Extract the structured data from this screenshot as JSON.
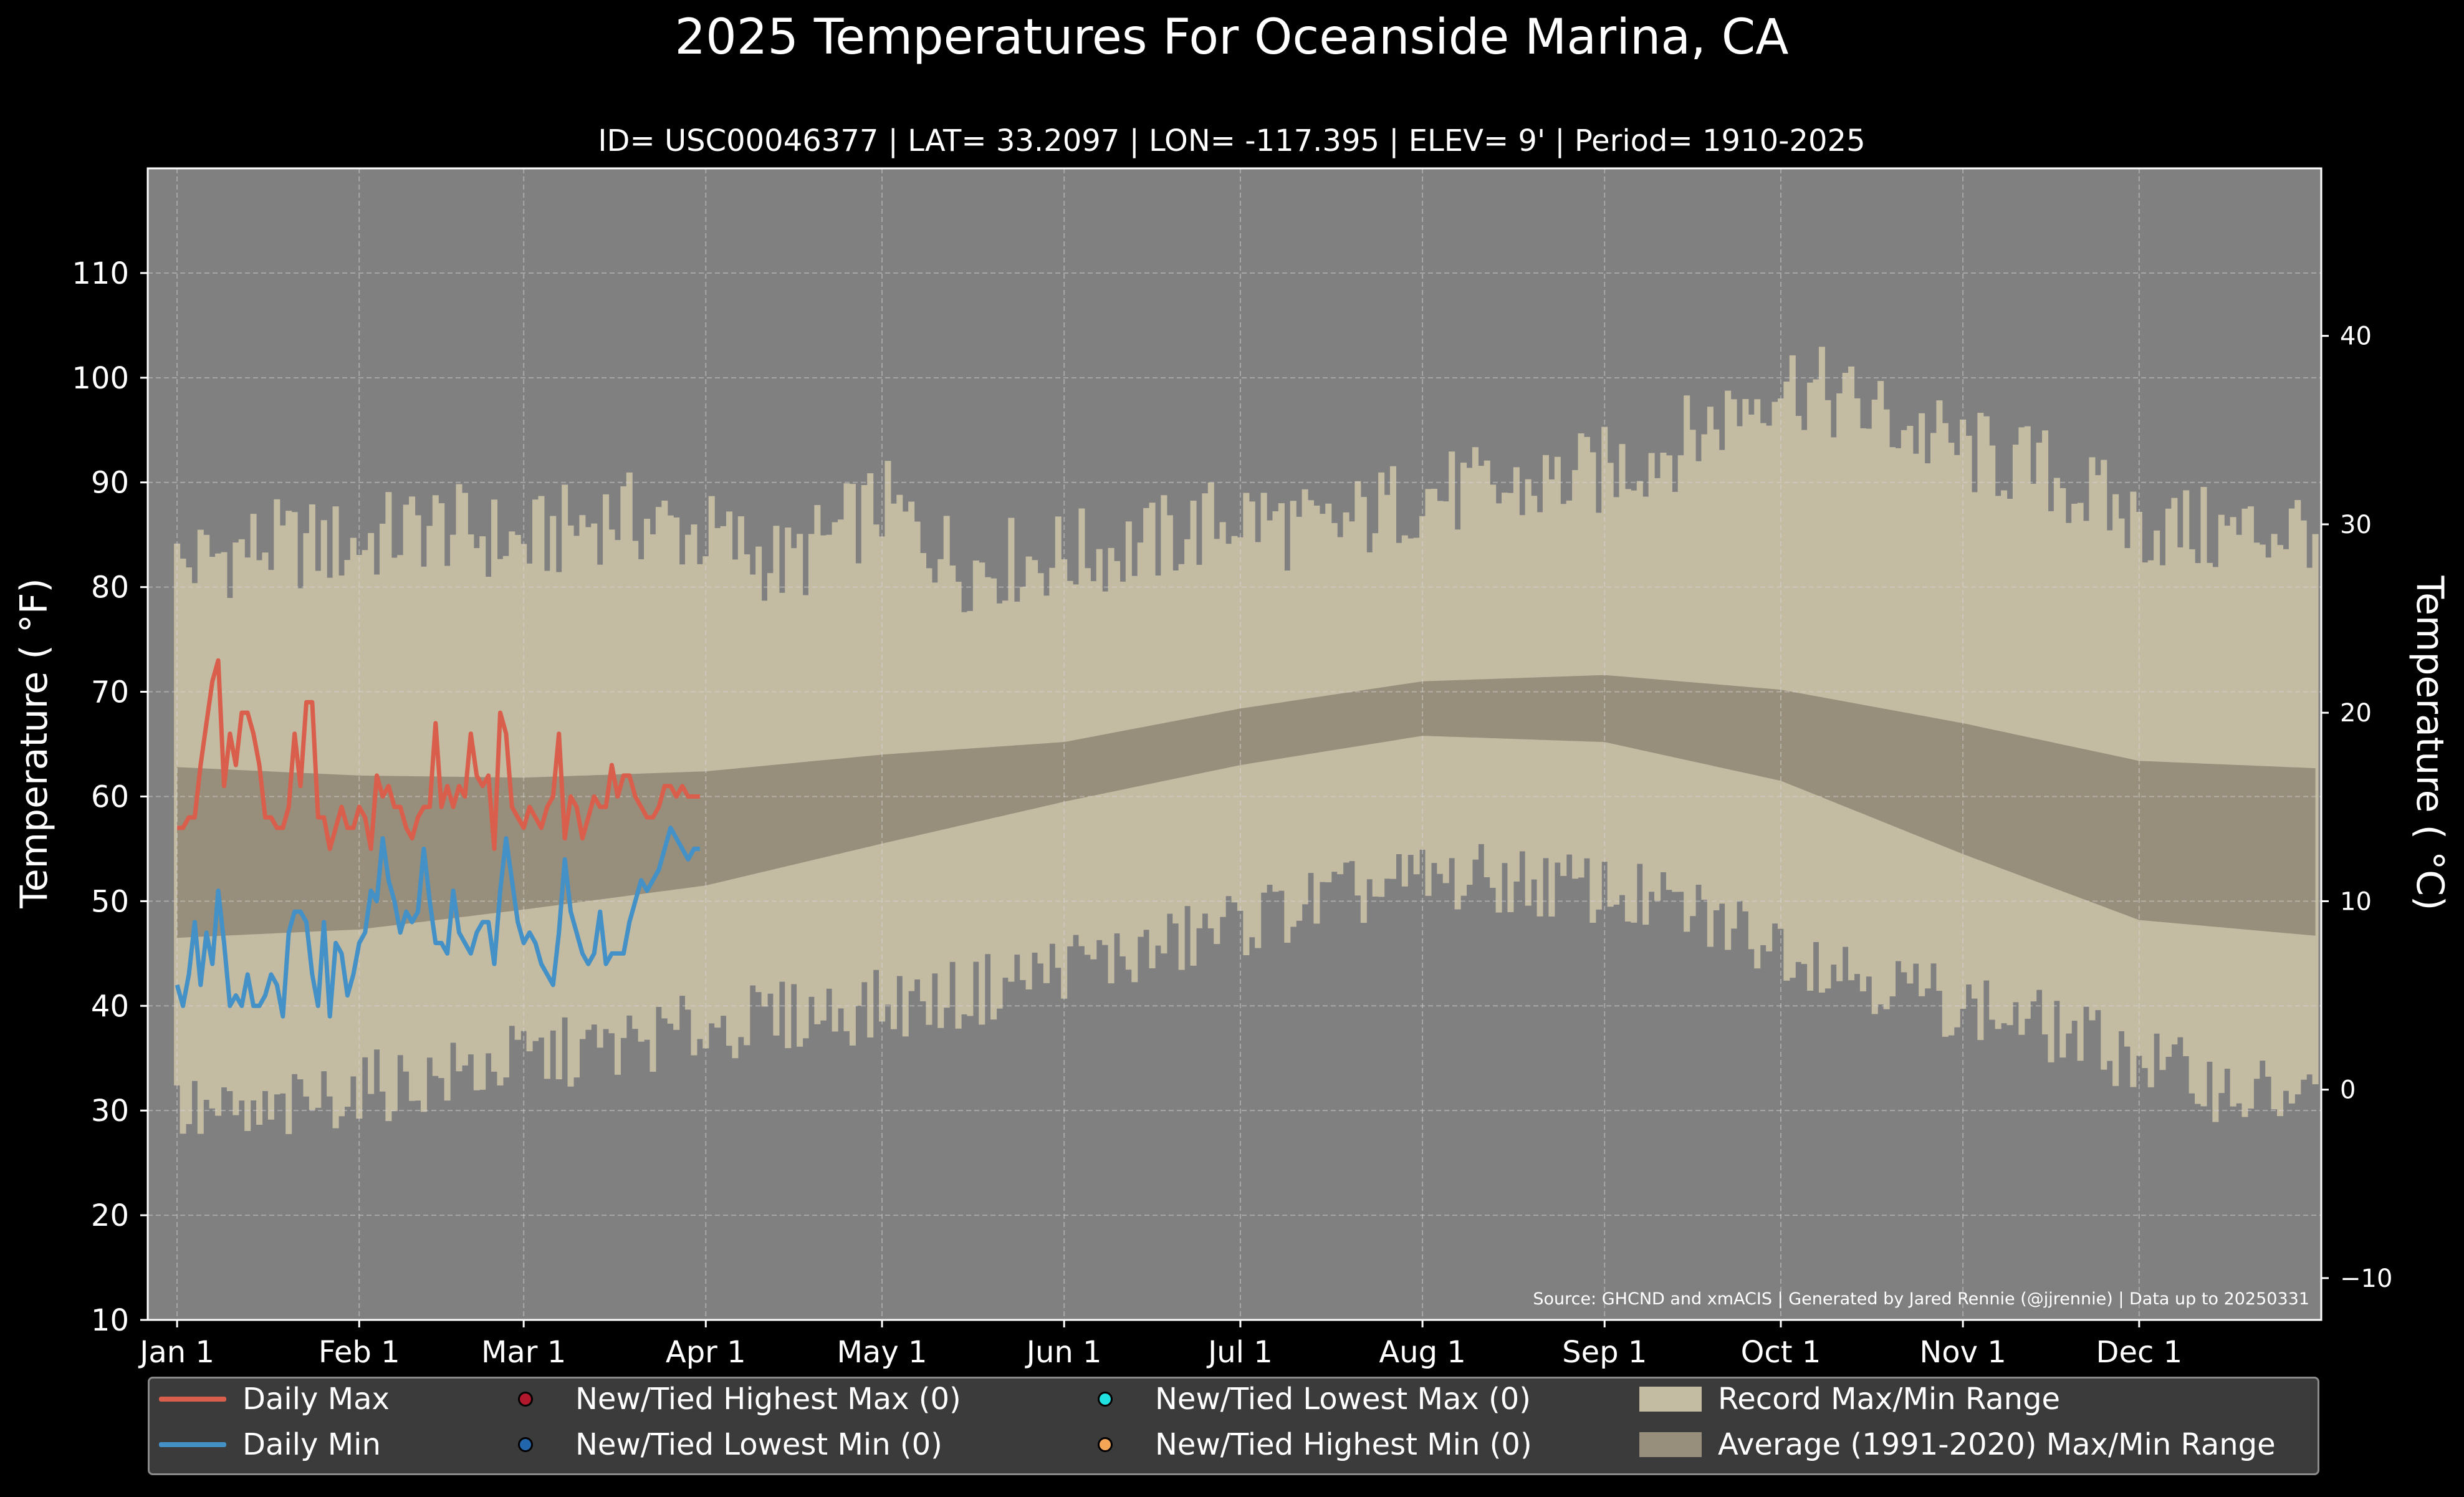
{
  "title": "2025 Temperatures For Oceanside Marina, CA",
  "subtitle": "ID= USC00046377 | LAT= 33.2097 | LON= -117.395 | ELEV= 9' | Period= 1910-2025",
  "source_note": "Source: GHCND and xmACIS | Generated by Jared Rennie (@jjrennie) | Data up to 20250331",
  "colors": {
    "background": "#000000",
    "plot_bg": "#808080",
    "record": "#c4bba3",
    "normal": "#978e7b",
    "daily_max": "#d95f4c",
    "daily_min": "#4391c6",
    "dot_high_max": "#b2182b",
    "dot_low_min": "#2166ac",
    "dot_low_max": "#20e0e0",
    "dot_high_min": "#f4a556"
  },
  "chart_data": {
    "type": "area",
    "ylabel": "Temperature ( °F)",
    "ylabel2": "Temperature ( °C)",
    "ylim": [
      10,
      120
    ],
    "ylim2_celsius": [
      -12.22,
      48.89
    ],
    "yticks": [
      "10",
      "20",
      "30",
      "40",
      "50",
      "60",
      "70",
      "80",
      "90",
      "100",
      "110"
    ],
    "yticks2": [
      "−10",
      "0",
      "10",
      "20",
      "30",
      "40"
    ],
    "yticks2_values": [
      -10,
      0,
      10,
      20,
      30,
      40
    ],
    "xticks": [
      "Jan 1",
      "Feb 1",
      "Mar 1",
      "Apr 1",
      "May 1",
      "Jun 1",
      "Jul 1",
      "Aug 1",
      "Sep 1",
      "Oct 1",
      "Nov 1",
      "Dec 1"
    ],
    "xticks_day": [
      1,
      32,
      60,
      91,
      121,
      152,
      182,
      213,
      244,
      274,
      305,
      335
    ],
    "xlim_days": [
      -4,
      366
    ],
    "grid": true,
    "legend_position": "below",
    "record_max_anchors": {
      "day": [
        1,
        15,
        30,
        45,
        60,
        75,
        91,
        105,
        121,
        135,
        152,
        166,
        182,
        196,
        213,
        227,
        244,
        258,
        274,
        288,
        305,
        319,
        335,
        350,
        365
      ],
      "value": [
        82,
        84,
        84,
        86,
        84,
        87,
        85,
        82,
        88,
        82,
        83,
        84,
        87,
        85,
        89,
        89,
        91,
        94,
        100,
        97,
        93,
        91,
        86,
        85,
        86
      ]
    },
    "record_min_anchors": {
      "day": [
        1,
        15,
        30,
        45,
        60,
        75,
        91,
        105,
        121,
        135,
        152,
        166,
        182,
        196,
        213,
        227,
        244,
        258,
        274,
        288,
        305,
        319,
        335,
        350,
        365
      ],
      "value": [
        30,
        29,
        32,
        33,
        35,
        36,
        38,
        39,
        40,
        41,
        44,
        45,
        48,
        50,
        52,
        52,
        51,
        49,
        46,
        43,
        40,
        38,
        35,
        32,
        31
      ]
    },
    "normal_max_anchors": {
      "day": [
        1,
        32,
        60,
        91,
        121,
        152,
        182,
        213,
        244,
        274,
        305,
        335,
        365
      ],
      "value": [
        62.8,
        62.0,
        61.8,
        62.4,
        64.0,
        65.2,
        68.4,
        71.0,
        71.6,
        70.2,
        67.0,
        63.4,
        62.7
      ]
    },
    "normal_min_anchors": {
      "day": [
        1,
        32,
        60,
        91,
        121,
        152,
        182,
        213,
        244,
        274,
        305,
        335,
        365
      ],
      "value": [
        46.5,
        47.3,
        49.2,
        51.5,
        55.5,
        59.5,
        63.0,
        65.8,
        65.2,
        61.5,
        54.5,
        48.2,
        46.7
      ]
    },
    "series": [
      {
        "name": "Daily Max",
        "x": [
          1,
          2,
          3,
          4,
          5,
          6,
          7,
          8,
          9,
          10,
          11,
          12,
          13,
          14,
          15,
          16,
          17,
          18,
          19,
          20,
          21,
          22,
          23,
          24,
          25,
          26,
          27,
          28,
          29,
          30,
          31,
          32,
          33,
          34,
          35,
          36,
          37,
          38,
          39,
          40,
          41,
          42,
          43,
          44,
          45,
          46,
          47,
          48,
          49,
          50,
          51,
          52,
          53,
          54,
          55,
          56,
          57,
          58,
          59,
          60,
          61,
          62,
          63,
          64,
          65,
          66,
          67,
          68,
          69,
          70,
          71,
          72,
          73,
          74,
          75,
          76,
          77,
          78,
          79,
          80,
          81,
          82,
          83,
          84,
          85,
          86,
          87,
          88,
          89,
          90
        ],
        "values": [
          57,
          57,
          58,
          58,
          63,
          67,
          71,
          73,
          61,
          66,
          63,
          68,
          68,
          66,
          63,
          58,
          58,
          57,
          57,
          59,
          66,
          61,
          69,
          69,
          58,
          58,
          55,
          57,
          59,
          57,
          57,
          59,
          58,
          55,
          62,
          60,
          61,
          59,
          59,
          57,
          56,
          58,
          59,
          59,
          67,
          59,
          61,
          59,
          61,
          60,
          66,
          62,
          61,
          62,
          55,
          68,
          66,
          59,
          58,
          57,
          59,
          58,
          57,
          59,
          60,
          66,
          56,
          60,
          59,
          56,
          58,
          60,
          59,
          59,
          63,
          60,
          62,
          62,
          60,
          59,
          58,
          58,
          59,
          61,
          61,
          60,
          61,
          60,
          60,
          60
        ],
        "color": "#d95f4c"
      },
      {
        "name": "Daily Min",
        "x": [
          1,
          2,
          3,
          4,
          5,
          6,
          7,
          8,
          9,
          10,
          11,
          12,
          13,
          14,
          15,
          16,
          17,
          18,
          19,
          20,
          21,
          22,
          23,
          24,
          25,
          26,
          27,
          28,
          29,
          30,
          31,
          32,
          33,
          34,
          35,
          36,
          37,
          38,
          39,
          40,
          41,
          42,
          43,
          44,
          45,
          46,
          47,
          48,
          49,
          50,
          51,
          52,
          53,
          54,
          55,
          56,
          57,
          58,
          59,
          60,
          61,
          62,
          63,
          64,
          65,
          66,
          67,
          68,
          69,
          70,
          71,
          72,
          73,
          74,
          75,
          76,
          77,
          78,
          79,
          80,
          81,
          82,
          83,
          84,
          85,
          86,
          87,
          88,
          89,
          90
        ],
        "values": [
          42,
          40,
          43,
          48,
          42,
          47,
          44,
          51,
          46,
          40,
          41,
          40,
          43,
          40,
          40,
          41,
          43,
          42,
          39,
          47,
          49,
          49,
          48,
          43,
          40,
          48,
          39,
          46,
          45,
          41,
          43,
          46,
          47,
          51,
          50,
          56,
          52,
          50,
          47,
          49,
          48,
          49,
          55,
          50,
          46,
          46,
          45,
          51,
          47,
          46,
          45,
          47,
          48,
          48,
          44,
          51,
          56,
          52,
          48,
          46,
          47,
          46,
          44,
          43,
          42,
          47,
          54,
          49,
          47,
          45,
          44,
          45,
          49,
          44,
          45,
          45,
          45,
          48,
          50,
          52,
          51,
          52,
          53,
          55,
          57,
          56,
          55,
          54,
          55,
          55
        ],
        "color": "#4391c6"
      }
    ]
  },
  "legend": {
    "items": [
      {
        "label": "Daily Max"
      },
      {
        "label": "Daily Min"
      },
      {
        "label": "New/Tied Highest Max (0)"
      },
      {
        "label": "New/Tied Lowest Min (0)"
      },
      {
        "label": "New/Tied Lowest Max (0)"
      },
      {
        "label": "New/Tied Highest Min (0)"
      },
      {
        "label": "Record Max/Min Range"
      },
      {
        "label": "Average (1991-2020) Max/Min Range"
      }
    ]
  }
}
